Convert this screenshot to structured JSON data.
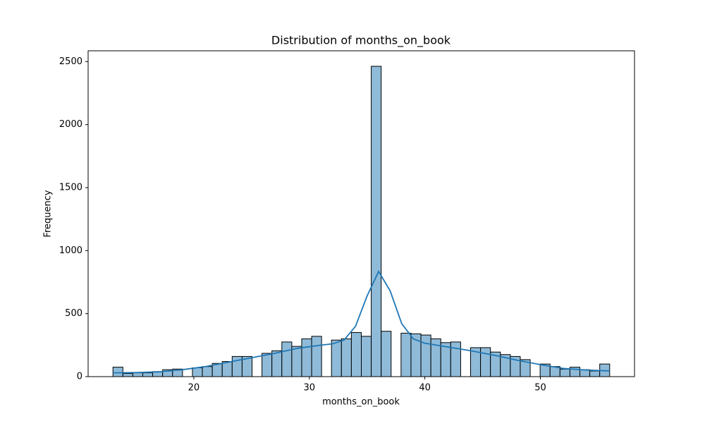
{
  "chart_data": {
    "type": "histogram",
    "title": "Distribution of months_on_book",
    "x_label": "months_on_book",
    "y_label": "Frequency",
    "bins": [
      13,
      13.86,
      14.72,
      15.58,
      16.44,
      17.3,
      18.16,
      19.02,
      19.88,
      20.74,
      21.6,
      22.46,
      23.32,
      24.18,
      25.04,
      25.9,
      26.76,
      27.62,
      28.48,
      29.34,
      30.2,
      31.06,
      31.92,
      32.78,
      33.64,
      34.5,
      35.36,
      36.22,
      37.08,
      37.94,
      38.8,
      39.66,
      40.52,
      41.38,
      42.24,
      43.1,
      43.96,
      44.82,
      45.68,
      46.54,
      47.4,
      48.26,
      49.12,
      49.98,
      50.84,
      51.7,
      52.56,
      53.42,
      54.28,
      55.14,
      56
    ],
    "values": [
      75,
      25,
      30,
      30,
      40,
      55,
      60,
      0,
      70,
      80,
      105,
      120,
      160,
      160,
      0,
      185,
      205,
      275,
      240,
      300,
      320,
      0,
      290,
      300,
      350,
      320,
      2463,
      360,
      0,
      345,
      340,
      330,
      300,
      270,
      275,
      0,
      230,
      230,
      195,
      175,
      160,
      135,
      0,
      100,
      80,
      60,
      75,
      55,
      45,
      100
    ],
    "color": "#8fbbd9",
    "edge_color": "#000000",
    "kde": {
      "color": "#1f77b4",
      "x": [
        13,
        15,
        17,
        19,
        21,
        23,
        25,
        27,
        29,
        31,
        32,
        33,
        34,
        35,
        36,
        37,
        38,
        39,
        40,
        42,
        44,
        46,
        48,
        50,
        52,
        54,
        56
      ],
      "values": [
        30,
        32,
        38,
        55,
        80,
        115,
        150,
        185,
        225,
        250,
        260,
        290,
        400,
        640,
        835,
        680,
        420,
        300,
        265,
        235,
        205,
        170,
        130,
        95,
        65,
        52,
        45
      ]
    },
    "xlim": [
      10.85,
      58.15
    ],
    "xticks": [
      20,
      30,
      40,
      50
    ],
    "ylim": [
      0,
      2586
    ],
    "yticks": [
      0,
      500,
      1000,
      1500,
      2000,
      2500
    ],
    "grid": false
  }
}
